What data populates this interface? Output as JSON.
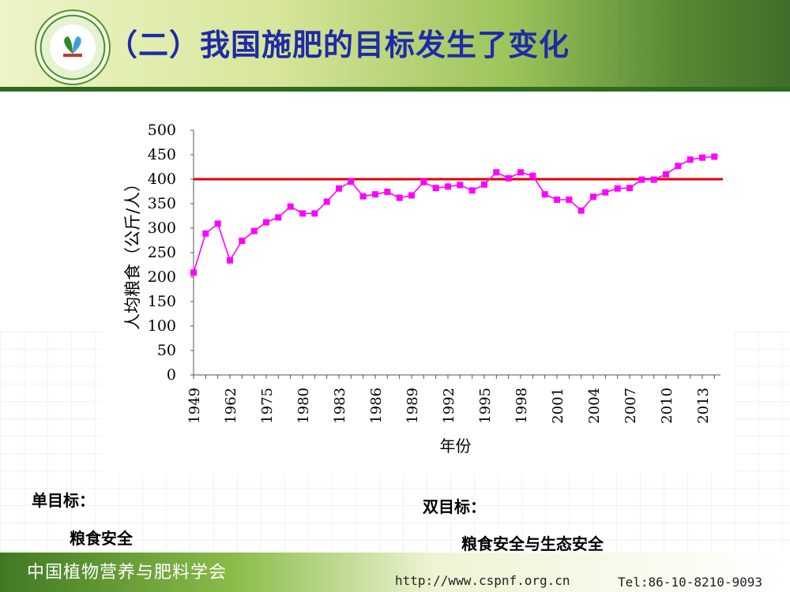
{
  "slide": {
    "title": "（二）我国施肥的目标发生了变化",
    "single_goal_label": "单目标：",
    "single_goal_value": "粮食安全",
    "double_goal_label": "双目标：",
    "double_goal_value": "粮食安全与生态安全"
  },
  "footer": {
    "organization": "中国植物营养与肥料学会",
    "url": "http://www.cspnf.org.cn",
    "tel": "Tel:86-10-8210-9093"
  },
  "colors": {
    "title": "#1f2aa8",
    "series": "#ff00ff",
    "reference_line": "#e00000"
  },
  "chart_data": {
    "type": "line",
    "ylabel": "人均粮食（公斤/人）",
    "xlabel": "年份",
    "ylim": [
      0,
      500
    ],
    "yticks": [
      0,
      50,
      100,
      150,
      200,
      250,
      300,
      350,
      400,
      450,
      500
    ],
    "xtick_labels": [
      "1949",
      "1962",
      "1975",
      "1980",
      "1983",
      "1986",
      "1989",
      "1992",
      "1995",
      "1998",
      "2001",
      "2004",
      "2007",
      "2010",
      "2013"
    ],
    "reference_value": 400,
    "values": [
      209,
      289,
      309,
      234,
      274,
      294,
      312,
      322,
      344,
      330,
      330,
      354,
      381,
      395,
      365,
      369,
      374,
      362,
      367,
      394,
      382,
      385,
      388,
      377,
      389,
      414,
      402,
      414,
      407,
      369,
      358,
      358,
      336,
      364,
      373,
      381,
      382,
      399,
      399,
      410,
      427,
      440,
      444,
      446
    ]
  }
}
